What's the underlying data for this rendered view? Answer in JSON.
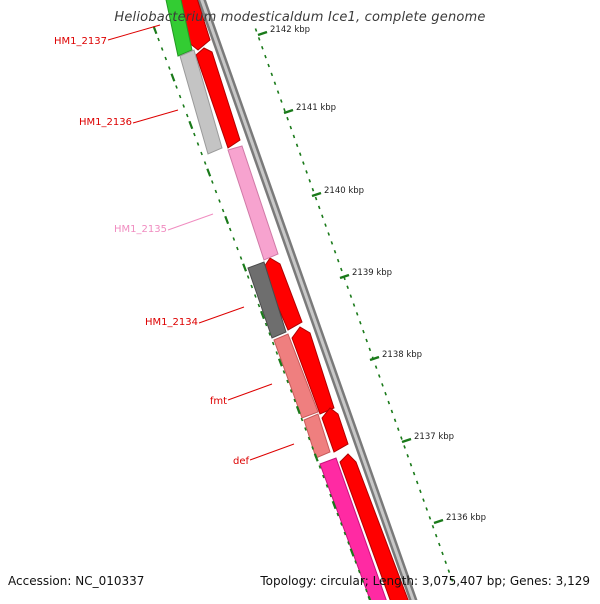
{
  "title": "Heliobacterium modesticaldum Ice1, complete genome",
  "footer": {
    "accession": "Accession: NC_010337",
    "summary": "Topology: circular; Length: 3,075,407 bp; Genes: 3,129"
  },
  "ruler": [
    {
      "label": "2142 kbp"
    },
    {
      "label": "2141 kbp"
    },
    {
      "label": "2140 kbp"
    },
    {
      "label": "2139 kbp"
    },
    {
      "label": "2138 kbp"
    },
    {
      "label": "2137 kbp"
    },
    {
      "label": "2136 kbp"
    }
  ],
  "gene_labels": [
    {
      "name": "HM1_2137",
      "color": "#dd0000"
    },
    {
      "name": "HM1_2136",
      "color": "#dd0000"
    },
    {
      "name": "HM1_2135",
      "color": "#f08cc0"
    },
    {
      "name": "HM1_2134",
      "color": "#dd0000"
    },
    {
      "name": "fmt",
      "color": "#dd0000"
    },
    {
      "name": "def",
      "color": "#dd0000"
    }
  ],
  "colors": {
    "tick_green": "#1a7a1a",
    "backbone": "#8a8a8a",
    "cds_red": "#ff0000",
    "gene_green": "#33cc33",
    "gene_lightgray": "#c4c4c4",
    "gene_pink": "#f7a3cf",
    "gene_darkgray": "#6e6e6e",
    "gene_salmon": "#ef7f7f",
    "gene_magenta": "#ff2aa3"
  }
}
